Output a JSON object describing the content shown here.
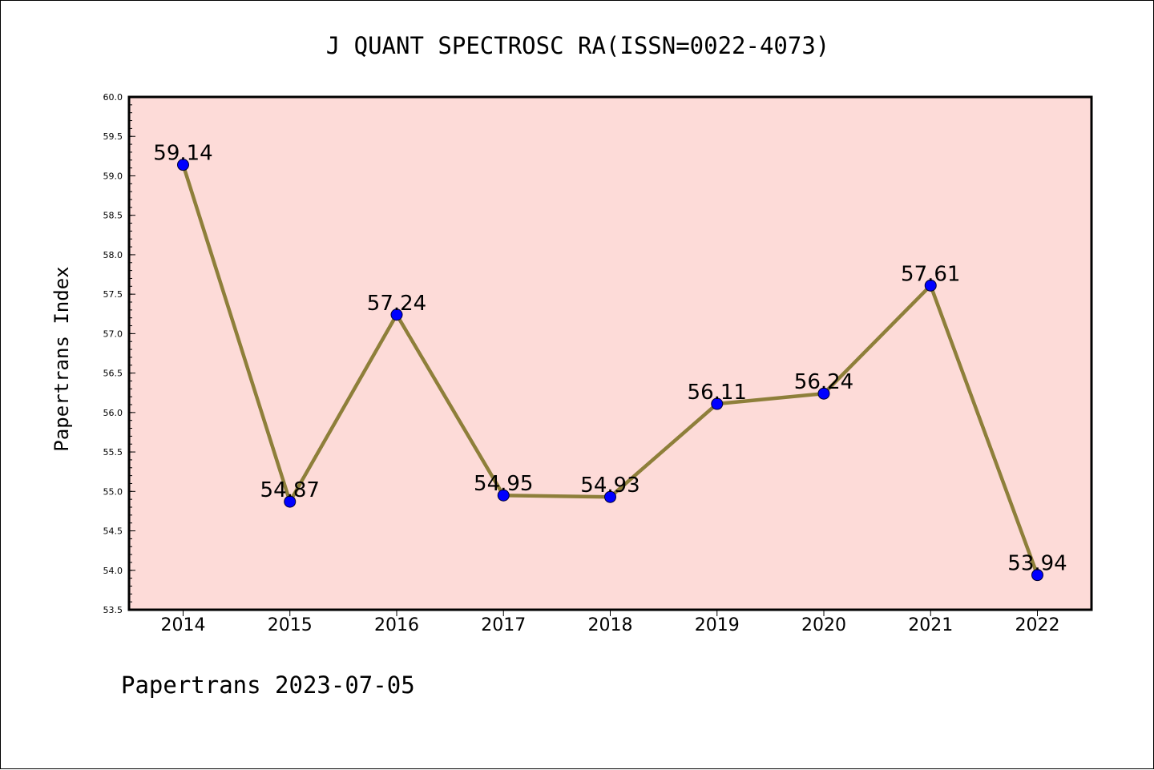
{
  "chart_data": {
    "type": "line",
    "title": "J QUANT SPECTROSC RA(ISSN=0022-4073)",
    "ylabel": "Papertrans Index",
    "xlabel": "",
    "categories": [
      "2014",
      "2015",
      "2016",
      "2017",
      "2018",
      "2019",
      "2020",
      "2021",
      "2022"
    ],
    "values": [
      59.14,
      54.87,
      57.24,
      54.95,
      54.93,
      56.11,
      56.24,
      57.61,
      53.94
    ],
    "data_labels": [
      "59.14",
      "54.87",
      "57.24",
      "54.95",
      "54.93",
      "56.11",
      "56.24",
      "57.61",
      "53.94"
    ],
    "ylim": [
      53.5,
      60.0
    ],
    "yticks": [
      "53.5",
      "54.0",
      "54.5",
      "55.0",
      "55.5",
      "56.0",
      "56.5",
      "57.0",
      "57.5",
      "58.0",
      "58.5",
      "59.0",
      "59.5",
      "60.0"
    ],
    "grid": false,
    "legend": "none",
    "colors": {
      "plot_background": "#fddbd8",
      "line": "#8e7f3a",
      "marker_fill": "#0000ff",
      "axis": "#000000"
    }
  },
  "footer": "Papertrans 2023-07-05"
}
